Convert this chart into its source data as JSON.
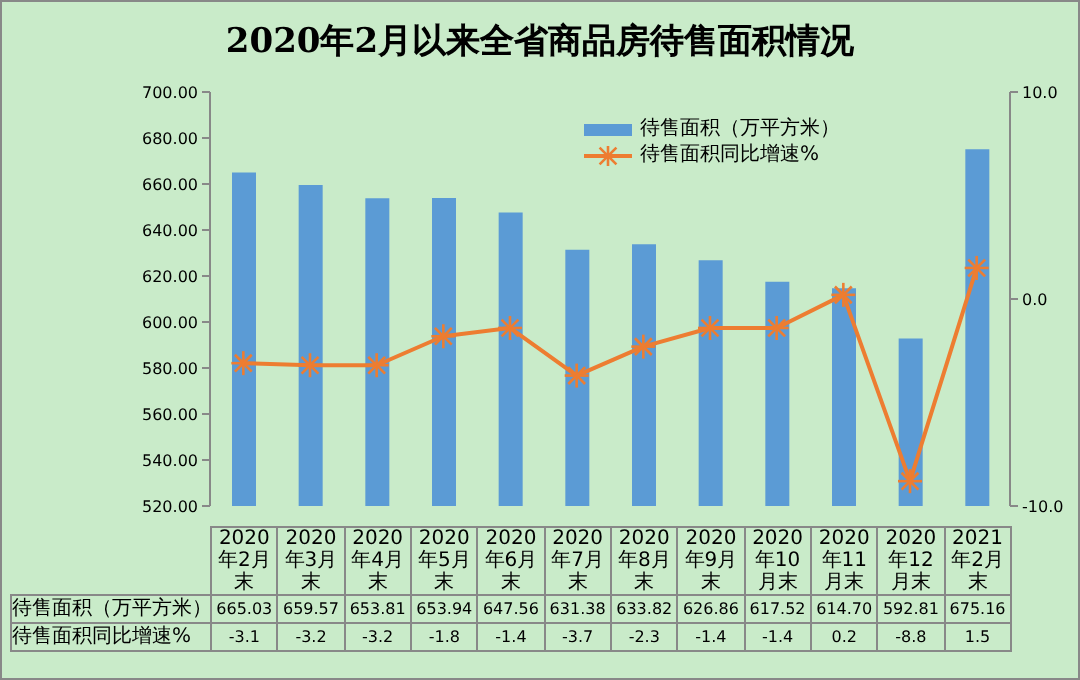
{
  "chart_data": {
    "type": "bar",
    "title": "2020年2月以来全省商品房待售面积情况",
    "categories": [
      "2020年2月末",
      "2020年3月末",
      "2020年4月末",
      "2020年5月末",
      "2020年6月末",
      "2020年7月末",
      "2020年8月末",
      "2020年9月末",
      "2020年10月末",
      "2020年11月末",
      "2020年12月末",
      "2021年2月末"
    ],
    "series": [
      {
        "name": "待售面积（万平方米）",
        "color": "#5b9bd5",
        "values": [
          665.03,
          659.57,
          653.81,
          653.94,
          647.56,
          631.38,
          633.82,
          626.86,
          617.52,
          614.7,
          592.81,
          675.16
        ],
        "value_labels": [
          "665.03",
          "659.57",
          "653.81",
          "653.94",
          "647.56",
          "631.38",
          "633.82",
          "626.86",
          "617.52",
          "614.70",
          "592.81",
          "675.16"
        ]
      },
      {
        "name": "待售面积同比增速%",
        "type": "line",
        "axis": "y2",
        "color": "#ed7d31",
        "marker": "cross",
        "values": [
          -3.1,
          -3.2,
          -3.2,
          -1.8,
          -1.4,
          -3.7,
          -2.3,
          -1.4,
          -1.4,
          0.2,
          -8.8,
          1.5
        ],
        "value_labels": [
          "-3.1",
          "-3.2",
          "-3.2",
          "-1.8",
          "-1.4",
          "-3.7",
          "-2.3",
          "-1.4",
          "-1.4",
          "0.2",
          "-8.8",
          "1.5"
        ]
      }
    ],
    "ylim": [
      520,
      700
    ],
    "yticks": [
      {
        "value": 520,
        "label": "520.00"
      },
      {
        "value": 540,
        "label": "540.00"
      },
      {
        "value": 560,
        "label": "560.00"
      },
      {
        "value": 580,
        "label": "580.00"
      },
      {
        "value": 600,
        "label": "600.00"
      },
      {
        "value": 620,
        "label": "620.00"
      },
      {
        "value": 640,
        "label": "640.00"
      },
      {
        "value": 660,
        "label": "660.00"
      },
      {
        "value": 680,
        "label": "680.00"
      },
      {
        "value": 700,
        "label": "700.00"
      }
    ],
    "y2lim": [
      -10,
      10
    ],
    "y2ticks": [
      {
        "value": -10,
        "label": "-10.0"
      },
      {
        "value": 0,
        "label": "0.0"
      },
      {
        "value": 10,
        "label": "10.0"
      }
    ],
    "legend": "top right",
    "grid": false
  }
}
